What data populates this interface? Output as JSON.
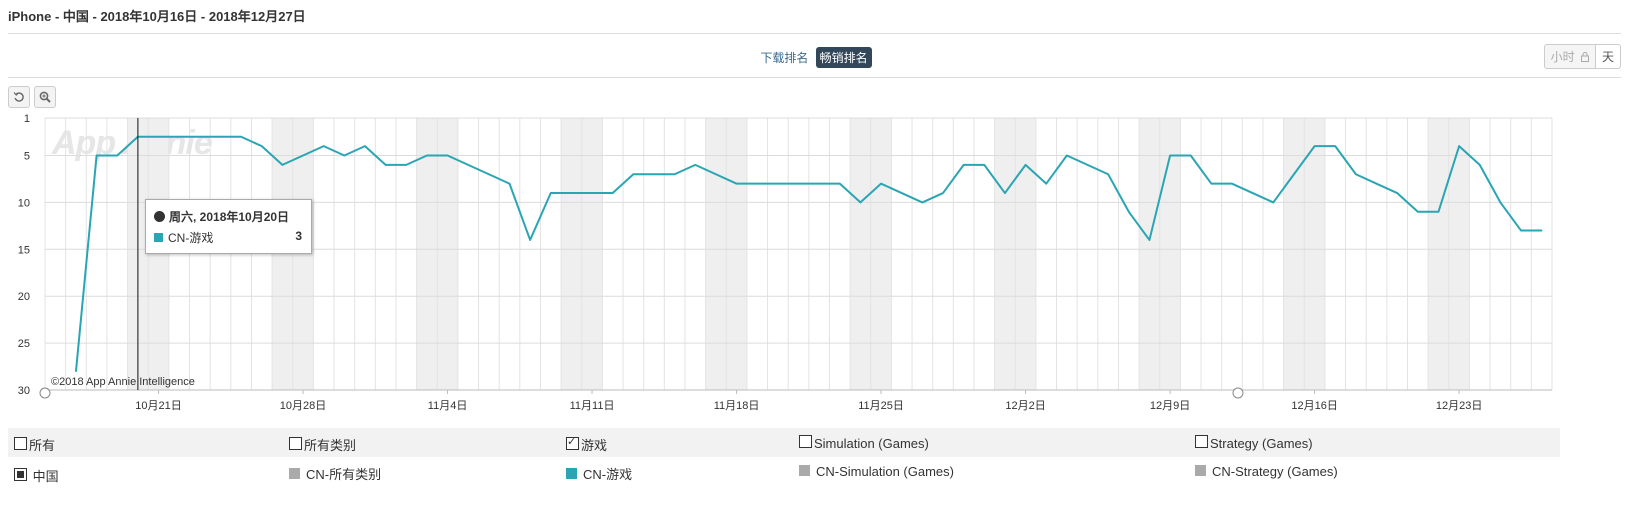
{
  "header": {
    "title": "iPhone - 中国 - 2018年10月16日 - 2018年12月27日"
  },
  "rank_type": {
    "options": [
      "下载排名",
      "畅销排名"
    ],
    "selected": "畅销排名"
  },
  "granularity": {
    "hour_label": "小时",
    "day_label": "天",
    "lock_icon": "lock-icon"
  },
  "tools": {
    "reset_icon": "reset-icon",
    "zoom_icon": "zoom-in-icon"
  },
  "tooltip": {
    "date": "周六, 2018年10月20日",
    "series": "CN-游戏",
    "value": "3"
  },
  "watermark": "App Annie",
  "copyright": "©2018 App Annie Intelligence",
  "legend": {
    "categories": [
      {
        "label": "所有",
        "checked": false
      },
      {
        "label": "所有类别",
        "checked": false
      },
      {
        "label": "游戏",
        "checked": true
      },
      {
        "label": "Simulation (Games)",
        "checked": false
      },
      {
        "label": "Strategy (Games)",
        "checked": false
      }
    ],
    "country": {
      "label": "中国",
      "checked": true
    },
    "series": [
      {
        "label": "CN-所有类别",
        "color": "#aaaaaa"
      },
      {
        "label": "CN-游戏",
        "color": "#2aa5b3"
      },
      {
        "label": "CN-Simulation (Games)",
        "color": "#aaaaaa"
      },
      {
        "label": "CN-Strategy (Games)",
        "color": "#aaaaaa"
      }
    ]
  },
  "chart_data": {
    "type": "line",
    "title": "",
    "xlabel": "",
    "ylabel": "",
    "y_reversed": true,
    "ylim": [
      1,
      30
    ],
    "y_ticks": [
      1,
      5,
      10,
      15,
      20,
      25,
      30
    ],
    "x_start": "2018-10-16",
    "x_end": "2018-12-27",
    "x_ticks": [
      "10月21日",
      "10月28日",
      "11月4日",
      "11月11日",
      "11月18日",
      "11月25日",
      "12月2日",
      "12月9日",
      "12月16日",
      "12月23日"
    ],
    "weekend_shading": true,
    "series": [
      {
        "name": "CN-游戏",
        "color": "#2aa5b3",
        "dates": [
          "2018-10-17",
          "2018-10-18",
          "2018-10-19",
          "2018-10-20",
          "2018-10-21",
          "2018-10-22",
          "2018-10-23",
          "2018-10-24",
          "2018-10-25",
          "2018-10-26",
          "2018-10-27",
          "2018-10-28",
          "2018-10-29",
          "2018-10-30",
          "2018-10-31",
          "2018-11-01",
          "2018-11-02",
          "2018-11-03",
          "2018-11-04",
          "2018-11-05",
          "2018-11-06",
          "2018-11-07",
          "2018-11-08",
          "2018-11-09",
          "2018-11-10",
          "2018-11-11",
          "2018-11-12",
          "2018-11-13",
          "2018-11-14",
          "2018-11-15",
          "2018-11-16",
          "2018-11-17",
          "2018-11-18",
          "2018-11-19",
          "2018-11-20",
          "2018-11-21",
          "2018-11-22",
          "2018-11-23",
          "2018-11-24",
          "2018-11-25",
          "2018-11-26",
          "2018-11-27",
          "2018-11-28",
          "2018-11-29",
          "2018-11-30",
          "2018-12-01",
          "2018-12-02",
          "2018-12-03",
          "2018-12-04",
          "2018-12-05",
          "2018-12-06",
          "2018-12-07",
          "2018-12-08",
          "2018-12-09",
          "2018-12-10",
          "2018-12-11",
          "2018-12-12",
          "2018-12-13",
          "2018-12-14",
          "2018-12-15",
          "2018-12-16",
          "2018-12-17",
          "2018-12-18",
          "2018-12-19",
          "2018-12-20",
          "2018-12-21",
          "2018-12-22",
          "2018-12-23",
          "2018-12-24",
          "2018-12-25",
          "2018-12-26",
          "2018-12-27"
        ],
        "values": [
          28,
          5,
          5,
          3,
          3,
          3,
          3,
          3,
          3,
          4,
          6,
          5,
          4,
          5,
          4,
          6,
          6,
          5,
          5,
          6,
          7,
          8,
          14,
          9,
          9,
          9,
          9,
          7,
          7,
          7,
          6,
          7,
          8,
          8,
          8,
          8,
          8,
          8,
          10,
          8,
          9,
          10,
          9,
          6,
          6,
          9,
          6,
          8,
          5,
          6,
          7,
          11,
          14,
          5,
          5,
          8,
          8,
          9,
          10,
          7,
          4,
          4,
          7,
          8,
          9,
          11,
          11,
          4,
          6,
          10,
          13,
          13
        ]
      }
    ]
  }
}
